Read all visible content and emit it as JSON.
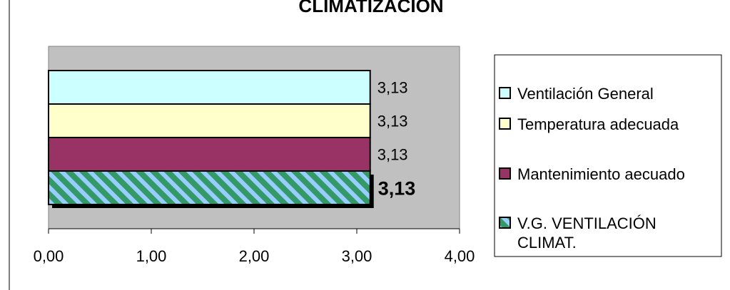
{
  "chart_data": {
    "type": "bar",
    "orientation": "horizontal",
    "title": "CLIMATIZACIÓN",
    "xlabel": "",
    "ylabel": "",
    "xlim": [
      0,
      4
    ],
    "x_ticks": [
      "0,00",
      "1,00",
      "2,00",
      "3,00",
      "4,00"
    ],
    "grid": false,
    "legend_position": "right",
    "series": [
      {
        "name": "Ventilación General",
        "value": 3.13,
        "label": "3,13",
        "color": "#CCFFFF",
        "pattern": "solid",
        "label_bold": false
      },
      {
        "name": "Temperatura adecuada",
        "value": 3.13,
        "label": "3,13",
        "color": "#FFFFCC",
        "pattern": "solid",
        "label_bold": false
      },
      {
        "name": "Mantenimiento aecuado",
        "value": 3.13,
        "label": "3,13",
        "color": "#993366",
        "pattern": "solid",
        "label_bold": false
      },
      {
        "name": "V.G. VENTILACIÓN CLIMAT.",
        "legend_lines": [
          "V.G. VENTILACIÓN",
          "CLIMAT."
        ],
        "value": 3.13,
        "label": "3,13",
        "color": "#339966",
        "stripe_color": "#99CCFF",
        "pattern": "diagonal",
        "label_bold": true
      }
    ]
  }
}
